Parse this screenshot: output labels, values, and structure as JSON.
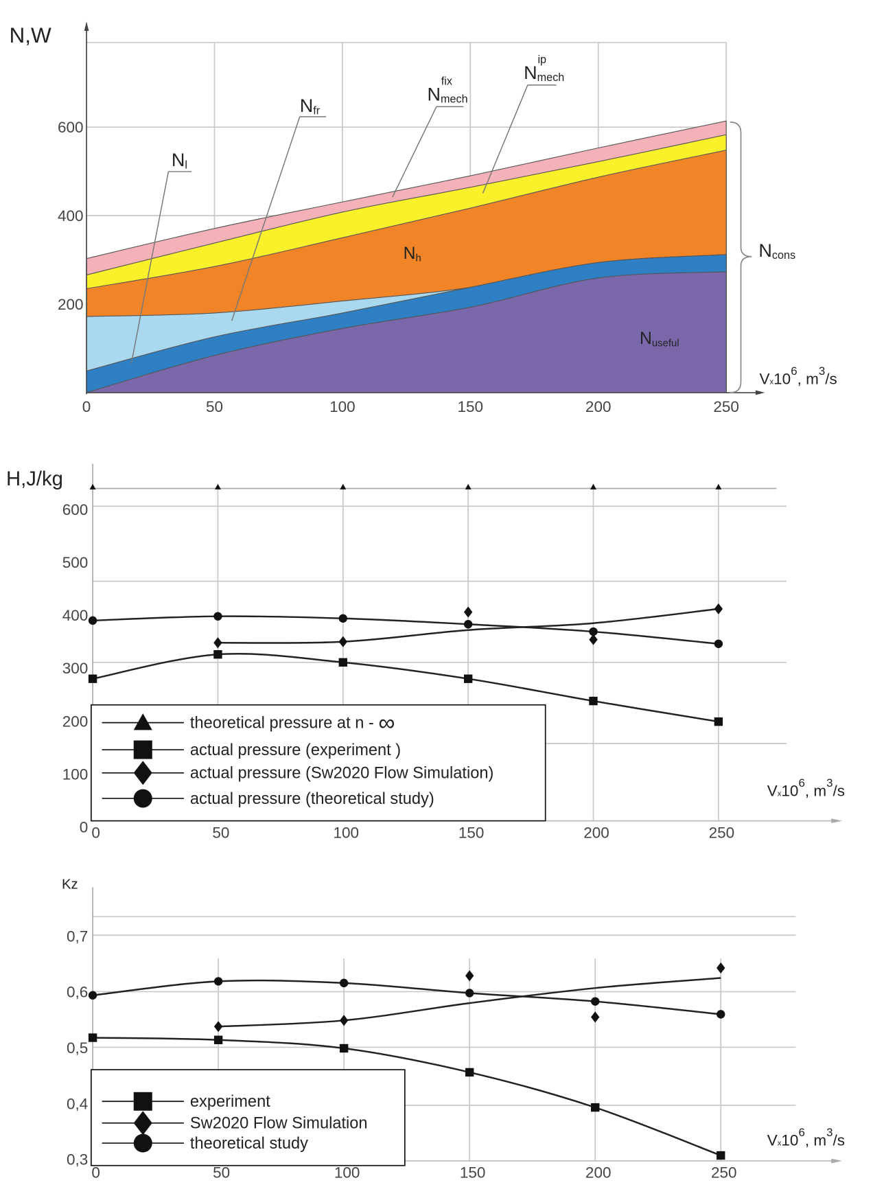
{
  "chart_data": [
    {
      "type": "area",
      "stacked": true,
      "ylabel": "N,W",
      "xlabel": {
        "main": "V",
        "mult": "x",
        "pow": "10",
        "exp": "6",
        "unit": ", m",
        "uexp": "3",
        "tail": "/s"
      },
      "x": [
        0,
        50,
        100,
        150,
        200,
        250
      ],
      "x_ticks": [
        "0",
        "50",
        "100",
        "150",
        "200",
        "250"
      ],
      "y_ticks": [
        "200",
        "400",
        "600"
      ],
      "ylim": [
        0,
        780
      ],
      "xlim": [
        0,
        250
      ],
      "series": [
        {
          "name": "N_useful",
          "label": "N",
          "sub": "useful",
          "color": "#7b68aa",
          "top": [
            0,
            84,
            145,
            193,
            259,
            273
          ]
        },
        {
          "name": "N_l",
          "label": "N",
          "sub": "l",
          "color": "#2f7fc4",
          "top": [
            49,
            126,
            180,
            238,
            294,
            312
          ]
        },
        {
          "name": "N_fr",
          "label": "N",
          "sub": "fr",
          "color": "#a9d8ef",
          "top": [
            172,
            180,
            207,
            238,
            294,
            312
          ]
        },
        {
          "name": "N_h",
          "label": "N",
          "sub": "h",
          "color": "#f08427",
          "top": [
            235,
            285,
            350,
            417,
            487,
            548
          ]
        },
        {
          "name": "N_mech_ip",
          "label": "N",
          "sub": "mech",
          "sup": "ip",
          "color": "#fbf12a",
          "top": [
            266,
            338,
            408,
            464,
            522,
            583
          ]
        },
        {
          "name": "N_mech_fix",
          "label": "N",
          "sub": "mech",
          "sup": "fix",
          "color": "#f4b2b8",
          "top": [
            303,
            371,
            431,
            490,
            553,
            614
          ]
        }
      ],
      "brace_label": {
        "label": "N",
        "sub": "cons"
      }
    },
    {
      "type": "line",
      "ylabel": "H,J/kg",
      "x": [
        0,
        50,
        100,
        150,
        200,
        250
      ],
      "x_ticks": [
        "0",
        "50",
        "100",
        "150",
        "200",
        "250"
      ],
      "y_ticks": [
        "0",
        "100",
        "200",
        "300",
        "400",
        "500",
        "600"
      ],
      "ylim": [
        0,
        640
      ],
      "series": [
        {
          "name": "theoretical pressure at n - ∞",
          "legend": "theoretical pressure at n - ",
          "legend_symbol": "∞",
          "marker": "triangle",
          "values": [
            640,
            640,
            640,
            640,
            640,
            640
          ]
        },
        {
          "name": "actual pressure (experiment )",
          "legend": "actual pressure (experiment )",
          "marker": "square",
          "values": [
            280,
            326,
            311,
            280,
            238,
            199
          ]
        },
        {
          "name": "actual pressure (Sw2020 Flow Simulation)",
          "legend": "actual pressure (Sw2020 Flow Simulation)",
          "marker": "diamond",
          "x": [
            50,
            100,
            150,
            200,
            250
          ],
          "values": [
            348,
            350,
            406,
            354,
            412
          ],
          "fit": [
            348,
            350,
            372,
            385,
            412
          ]
        },
        {
          "name": "actual pressure (theoretical study)",
          "legend": "actual pressure (theoretical study)",
          "marker": "circle",
          "values": [
            390,
            398,
            394,
            383,
            369,
            346
          ]
        }
      ],
      "legend_position": "bottom-left",
      "xlabel": {
        "main": "V",
        "mult": "x",
        "pow": "10",
        "exp": "6",
        "unit": ", m",
        "uexp": "3",
        "tail": "/s"
      }
    },
    {
      "type": "line",
      "ylabel": "Kz",
      "x": [
        0,
        50,
        100,
        150,
        200,
        250
      ],
      "x_ticks": [
        "0",
        "50",
        "100",
        "150",
        "200",
        "250"
      ],
      "y_ticks": [
        "0,3",
        "0,4",
        "0,5",
        "0,6",
        "0,7"
      ],
      "ylim": [
        0.3,
        0.73
      ],
      "series": [
        {
          "name": "experiment",
          "legend": "experiment",
          "marker": "square",
          "values": [
            0.518,
            0.514,
            0.499,
            0.456,
            0.393,
            0.307
          ]
        },
        {
          "name": "Sw2020 Flow Simulation",
          "legend": "Sw2020 Flow Simulation",
          "marker": "diamond",
          "x": [
            50,
            100,
            150,
            200,
            250
          ],
          "values": [
            0.538,
            0.549,
            0.629,
            0.555,
            0.643
          ],
          "fit": [
            0.538,
            0.549,
            0.58,
            0.607,
            0.625
          ]
        },
        {
          "name": "theoretical study",
          "legend": "theoretical study",
          "marker": "circle",
          "values": [
            0.594,
            0.619,
            0.616,
            0.598,
            0.583,
            0.56
          ]
        }
      ],
      "legend_position": "bottom-left",
      "xlabel": {
        "main": "V",
        "mult": "x",
        "pow": "10",
        "exp": "6",
        "unit": ", m",
        "uexp": "3",
        "tail": "/s"
      }
    }
  ]
}
